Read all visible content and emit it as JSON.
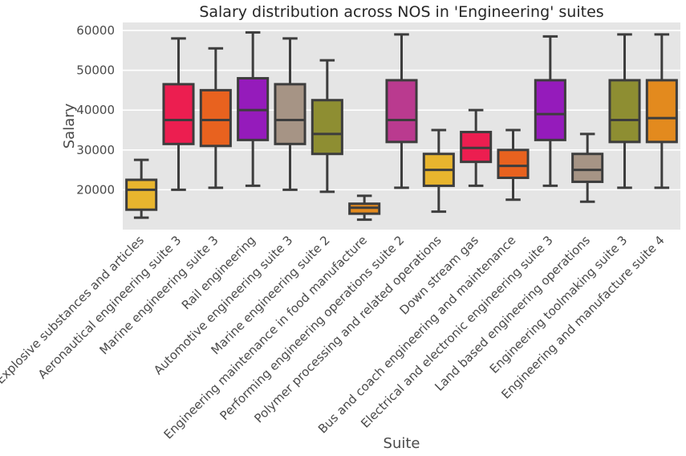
{
  "chart_data": {
    "type": "box",
    "title": "Salary distribution across NOS in 'Engineering' suites",
    "xlabel": "Suite",
    "ylabel": "Salary",
    "ylim": [
      10000,
      62000
    ],
    "yticks": [
      20000,
      30000,
      40000,
      50000,
      60000
    ],
    "ytick_labels": [
      "20000",
      "30000",
      "40000",
      "50000",
      "60000"
    ],
    "grid": true,
    "categories": [
      "Explosive substances and articles",
      "Aeronautical engineering suite 3",
      "Marine engineering suite 3",
      "Rail engineering",
      "Automotive engineering suite 3",
      "Marine engineering suite 2",
      "Engineering maintenance in food manufacture",
      "Performing engineering operations suite 2",
      "Polymer processing and related operations",
      "Down stream gas",
      "Bus and coach engineering and maintenance",
      "Electrical and electronic engineering suite 3",
      "Land based engineering operations",
      "Engineering toolmaking suite 3",
      "Engineering and manufacture suite 4"
    ],
    "boxes": [
      {
        "whisker_low": 13000,
        "q1": 15000,
        "median": 20000,
        "q3": 22500,
        "whisker_high": 27500,
        "color": "#E8B52E"
      },
      {
        "whisker_low": 20000,
        "q1": 31500,
        "median": 37500,
        "q3": 46500,
        "whisker_high": 58000,
        "color": "#EC1E50"
      },
      {
        "whisker_low": 20500,
        "q1": 31000,
        "median": 37500,
        "q3": 45000,
        "whisker_high": 55500,
        "color": "#E8621F"
      },
      {
        "whisker_low": 21000,
        "q1": 32500,
        "median": 40000,
        "q3": 48000,
        "whisker_high": 59500,
        "color": "#951BBB"
      },
      {
        "whisker_low": 20000,
        "q1": 31500,
        "median": 37500,
        "q3": 46500,
        "whisker_high": 58000,
        "color": "#A69485"
      },
      {
        "whisker_low": 19500,
        "q1": 29000,
        "median": 34000,
        "q3": 42500,
        "whisker_high": 52500,
        "color": "#8E8E32"
      },
      {
        "whisker_low": 12500,
        "q1": 14000,
        "median": 15500,
        "q3": 16500,
        "whisker_high": 18500,
        "color": "#E38A1E"
      },
      {
        "whisker_low": 20500,
        "q1": 32000,
        "median": 37500,
        "q3": 47500,
        "whisker_high": 59000,
        "color": "#BA3A8F"
      },
      {
        "whisker_low": 14500,
        "q1": 21000,
        "median": 25000,
        "q3": 29000,
        "whisker_high": 35000,
        "color": "#E8B52E"
      },
      {
        "whisker_low": 21000,
        "q1": 27000,
        "median": 30500,
        "q3": 34500,
        "whisker_high": 40000,
        "color": "#EC1E50"
      },
      {
        "whisker_low": 17500,
        "q1": 23000,
        "median": 26000,
        "q3": 30000,
        "whisker_high": 35000,
        "color": "#E8621F"
      },
      {
        "whisker_low": 21000,
        "q1": 32500,
        "median": 39000,
        "q3": 47500,
        "whisker_high": 58500,
        "color": "#951BBB"
      },
      {
        "whisker_low": 17000,
        "q1": 22000,
        "median": 25000,
        "q3": 29000,
        "whisker_high": 34000,
        "color": "#A69485"
      },
      {
        "whisker_low": 20500,
        "q1": 32000,
        "median": 37500,
        "q3": 47500,
        "whisker_high": 59000,
        "color": "#8E8E32"
      },
      {
        "whisker_low": 20500,
        "q1": 32000,
        "median": 38000,
        "q3": 47500,
        "whisker_high": 59000,
        "color": "#E38A1E"
      }
    ]
  },
  "colors": {
    "plot_background": "#E5E5E5",
    "grid": "#FFFFFF",
    "box_edge": "#3D3D3D"
  }
}
